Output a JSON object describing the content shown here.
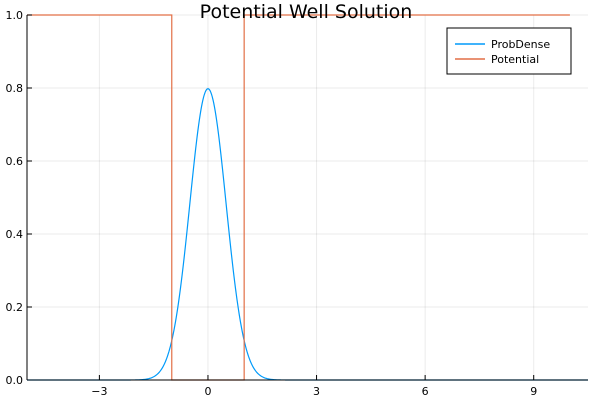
{
  "chart_data": {
    "type": "line",
    "title": "Potential Well Solution",
    "xlabel": "",
    "ylabel": "",
    "xlim": [
      -5,
      10.5
    ],
    "ylim": [
      0,
      1
    ],
    "xticks": [
      -3,
      0,
      3,
      6,
      9
    ],
    "yticks": [
      0.0,
      0.2,
      0.4,
      0.6,
      0.8,
      1.0
    ],
    "xtick_labels": [
      "−3",
      "0",
      "3",
      "6",
      "9"
    ],
    "ytick_labels": [
      "0.0",
      "0.2",
      "0.4",
      "0.6",
      "0.8",
      "1.0"
    ],
    "grid": true,
    "legend_position": "top-right",
    "series": [
      {
        "name": "ProbDense",
        "color": "#009AFA",
        "x": [
          -5,
          -2.0,
          -1.8,
          -1.6,
          -1.4,
          -1.2,
          -1.0,
          -0.8,
          -0.6,
          -0.4,
          -0.2,
          0.0,
          0.2,
          0.4,
          0.6,
          0.8,
          1.0,
          1.2,
          1.4,
          1.6,
          1.8,
          2.0,
          10.5
        ],
        "y": [
          0,
          0.0003,
          0.0013,
          0.0046,
          0.0157,
          0.0451,
          0.108,
          0.217,
          0.371,
          0.55,
          0.71,
          0.798,
          0.71,
          0.55,
          0.371,
          0.217,
          0.108,
          0.0451,
          0.0157,
          0.0046,
          0.0013,
          0.0003,
          0
        ]
      },
      {
        "name": "Potential",
        "color": "#E26F46",
        "x": [
          -5,
          -1,
          -1,
          1,
          1,
          10
        ],
        "y": [
          1,
          1,
          0,
          0,
          1,
          1
        ]
      }
    ]
  }
}
